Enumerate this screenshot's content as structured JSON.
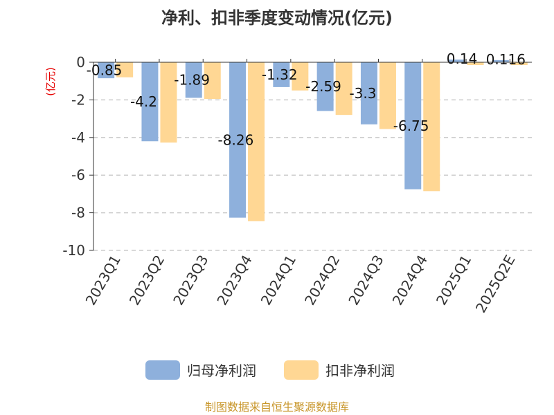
{
  "chart_data": {
    "type": "bar",
    "title": "净利、扣非季度变动情况(亿元)",
    "unit_label": "(亿元)",
    "categories": [
      "2023Q1",
      "2023Q2",
      "2023Q3",
      "2023Q4",
      "2024Q1",
      "2024Q2",
      "2024Q3",
      "2024Q4",
      "2025Q1",
      "2025Q2E"
    ],
    "series": [
      {
        "name": "归母净利润",
        "color": "#8eb0dc",
        "values": [
          -0.85,
          -4.2,
          -1.89,
          -8.26,
          -1.32,
          -2.59,
          -3.3,
          -6.75,
          0.14,
          0.116
        ],
        "labels": [
          "-0.85",
          "-4.2",
          "-1.89",
          "-8.26",
          "-1.32",
          "-2.59",
          "-3.3",
          "-6.75",
          "0.14",
          "0.116"
        ]
      },
      {
        "name": "扣非净利润",
        "color": "#ffd794",
        "values": [
          -0.8,
          -4.27,
          -1.95,
          -8.45,
          -1.5,
          -2.8,
          -3.55,
          -6.85,
          -0.15,
          -0.15
        ]
      }
    ],
    "ylim": [
      -10,
      0
    ],
    "yticks": [
      "0",
      "-2",
      "-4",
      "-6",
      "-8",
      "-10"
    ],
    "ytick_values": [
      0,
      -2,
      -4,
      -6,
      -8,
      -10
    ],
    "grid": true,
    "legend_position": "bottom"
  },
  "source": "制图数据来自恒生聚源数据库"
}
